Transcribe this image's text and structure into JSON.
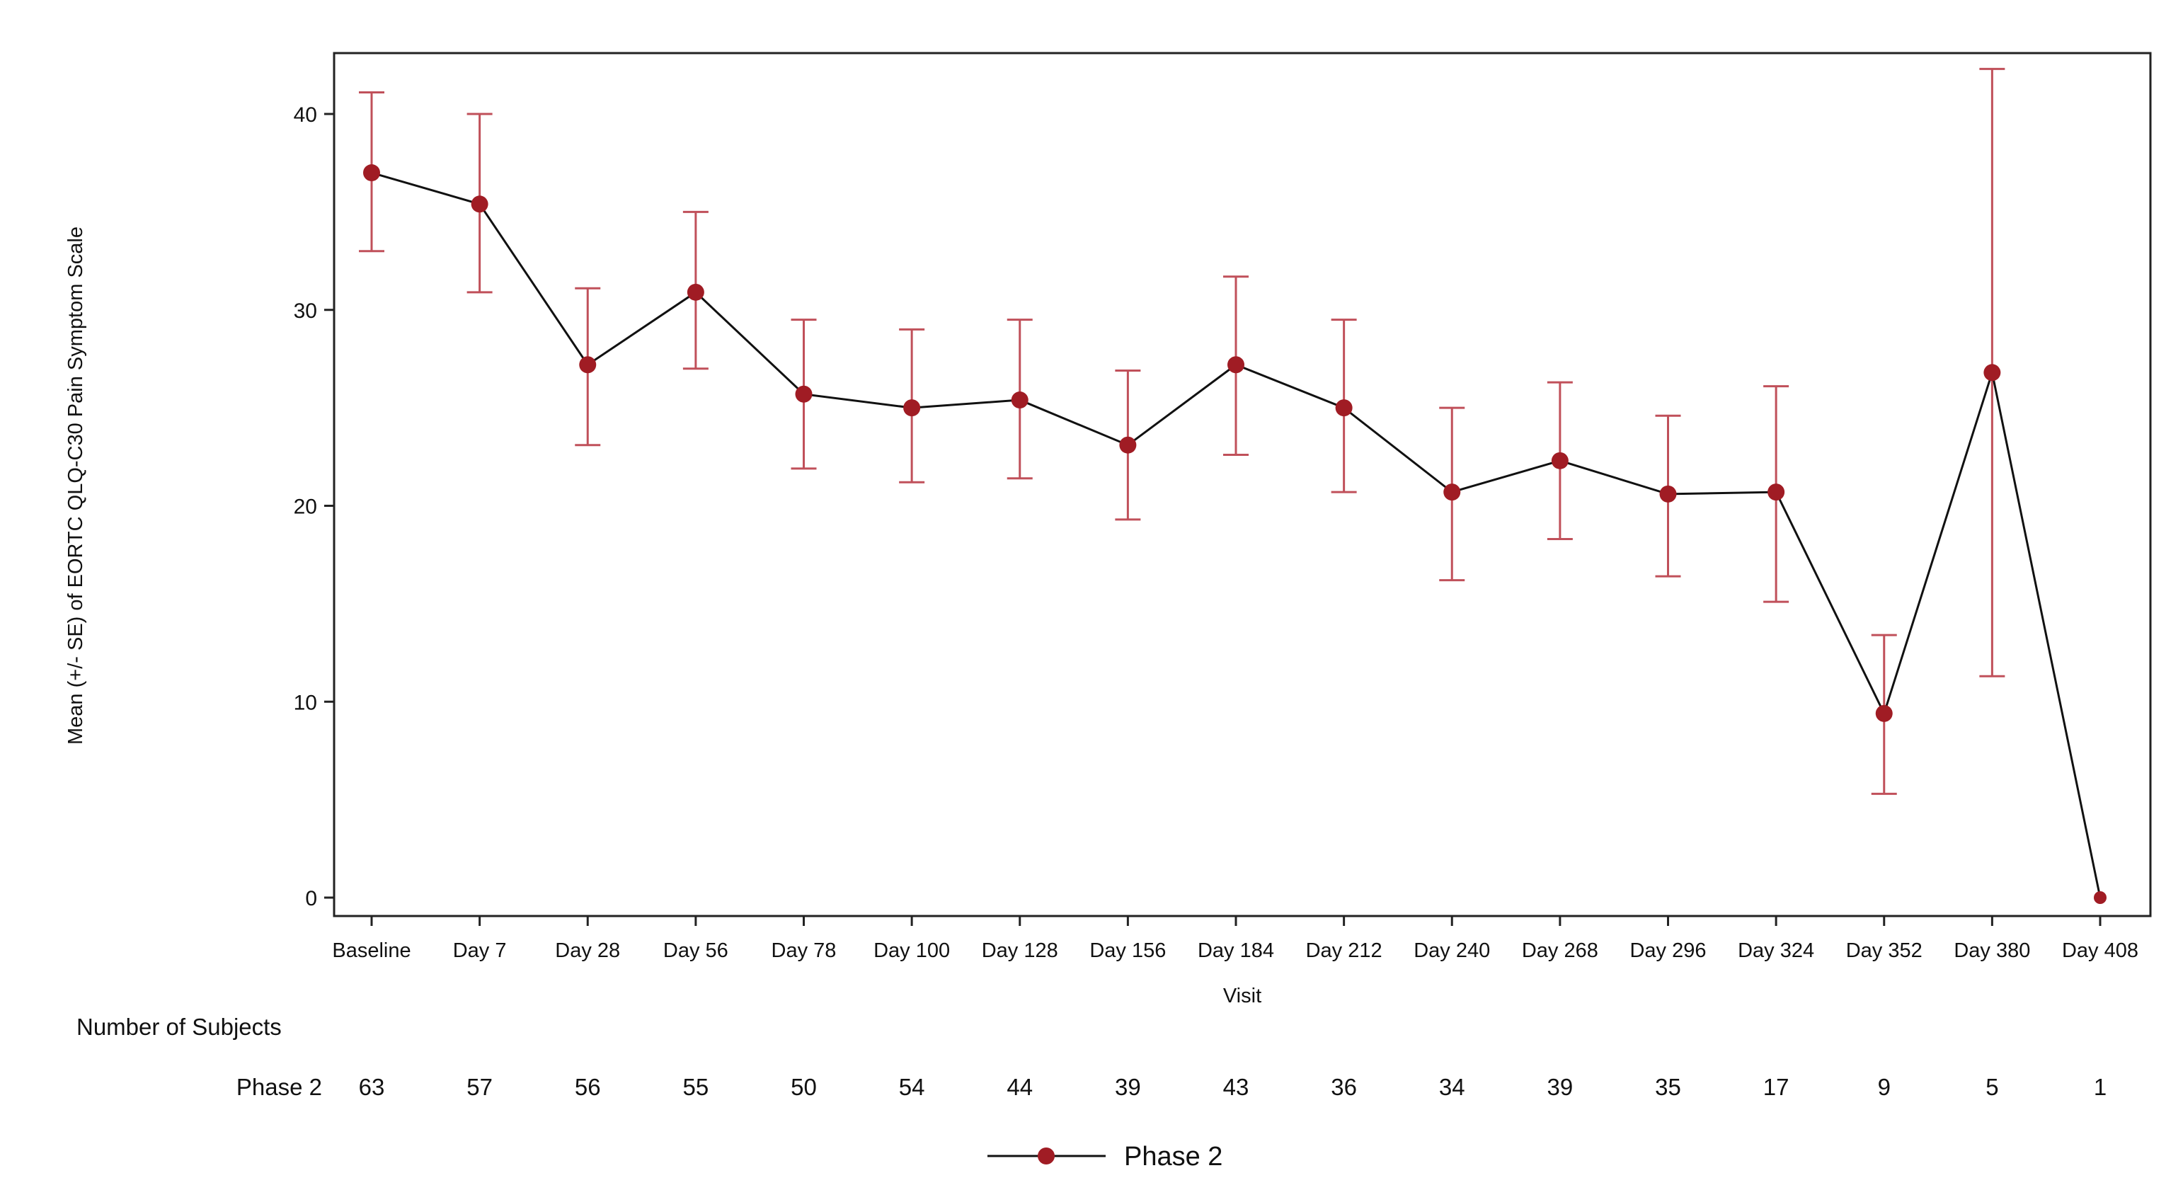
{
  "chart_data": {
    "type": "line",
    "title": "",
    "xlabel": "Visit",
    "ylabel": "Mean (+/- SE) of EORTC QLQ-C30 Pain Symptom Scale",
    "ylim": [
      0,
      43
    ],
    "yticks": [
      0,
      10,
      20,
      30,
      40
    ],
    "grid": false,
    "legend_placement": "bottom-center",
    "categories": [
      "Baseline",
      "Day 7",
      "Day 28",
      "Day 56",
      "Day 78",
      "Day 100",
      "Day 128",
      "Day 156",
      "Day 184",
      "Day 212",
      "Day 240",
      "Day 268",
      "Day 296",
      "Day 324",
      "Day 352",
      "Day 380",
      "Day 408"
    ],
    "series": [
      {
        "name": "Phase 2",
        "color": "#a01c24",
        "error_color": "#c0505a",
        "line_color": "#111111",
        "values": [
          37.0,
          35.4,
          27.2,
          30.9,
          25.7,
          25.0,
          25.4,
          23.1,
          27.2,
          25.0,
          20.7,
          22.3,
          20.6,
          20.7,
          9.4,
          26.8,
          0.0
        ],
        "upper": [
          41.1,
          40.0,
          31.1,
          35.0,
          29.5,
          29.0,
          29.5,
          26.9,
          31.7,
          29.5,
          25.0,
          26.3,
          24.6,
          26.1,
          13.4,
          42.3,
          null
        ],
        "lower": [
          33.0,
          30.9,
          23.1,
          27.0,
          21.9,
          21.2,
          21.4,
          19.3,
          22.6,
          20.7,
          16.2,
          18.3,
          16.4,
          15.1,
          5.3,
          11.3,
          null
        ]
      }
    ],
    "subjects_table": {
      "title": "Number of Subjects",
      "rows": [
        {
          "label": "Phase 2",
          "counts": [
            "63",
            "57",
            "56",
            "55",
            "50",
            "54",
            "44",
            "39",
            "43",
            "36",
            "34",
            "39",
            "35",
            "17",
            "9",
            "5",
            "1"
          ]
        }
      ]
    }
  }
}
